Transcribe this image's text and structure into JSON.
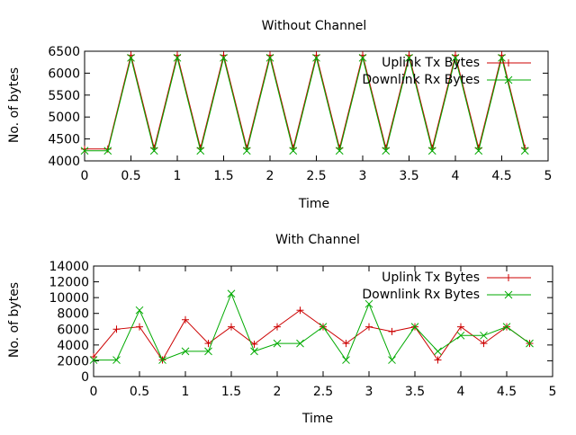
{
  "chart_data": [
    {
      "type": "line",
      "title": "Without Channel",
      "xlabel": "Time",
      "ylabel": "No. of bytes",
      "xlim": [
        0,
        5
      ],
      "ylim": [
        4000,
        6500
      ],
      "x_ticks": [
        "0",
        "0.5",
        "1",
        "1.5",
        "2",
        "2.5",
        "3",
        "3.5",
        "4",
        "4.5",
        "5"
      ],
      "y_ticks": [
        "4000",
        "4500",
        "5000",
        "5500",
        "6000",
        "6500"
      ],
      "legend_position": "top-right",
      "series": [
        {
          "name": "Uplink Tx Bytes",
          "color": "#cc0000",
          "marker": "plus",
          "x": [
            0,
            0.25,
            0.5,
            0.75,
            1,
            1.25,
            1.5,
            1.75,
            2,
            2.25,
            2.5,
            2.75,
            3,
            3.25,
            3.5,
            3.75,
            4,
            4.25,
            4.5,
            4.75
          ],
          "y": [
            4270,
            4270,
            6410,
            4290,
            6410,
            4290,
            6410,
            4290,
            6410,
            4290,
            6410,
            4290,
            6410,
            4290,
            6410,
            4290,
            6410,
            4290,
            6410,
            4290
          ]
        },
        {
          "name": "Downlink Rx Bytes",
          "color": "#00aa00",
          "marker": "x",
          "x": [
            0,
            0.25,
            0.5,
            0.75,
            1,
            1.25,
            1.5,
            1.75,
            2,
            2.25,
            2.5,
            2.75,
            3,
            3.25,
            3.5,
            3.75,
            4,
            4.25,
            4.5,
            4.75
          ],
          "y": [
            4230,
            4230,
            6350,
            4230,
            6350,
            4230,
            6350,
            4230,
            6350,
            4230,
            6350,
            4230,
            6350,
            4230,
            6350,
            4230,
            6350,
            4230,
            6350,
            4230
          ]
        }
      ]
    },
    {
      "type": "line",
      "title": "With Channel",
      "xlabel": "Time",
      "ylabel": "No. of bytes",
      "xlim": [
        0,
        5
      ],
      "ylim": [
        0,
        14000
      ],
      "x_ticks": [
        "0",
        "0.5",
        "1",
        "1.5",
        "2",
        "2.5",
        "3",
        "3.5",
        "4",
        "4.5",
        "5"
      ],
      "y_ticks": [
        "0",
        "2000",
        "4000",
        "6000",
        "8000",
        "10000",
        "12000",
        "14000"
      ],
      "legend_position": "top-right",
      "series": [
        {
          "name": "Uplink Tx Bytes",
          "color": "#cc0000",
          "marker": "plus",
          "x": [
            0,
            0.25,
            0.5,
            0.75,
            1,
            1.25,
            1.5,
            1.75,
            2,
            2.25,
            2.5,
            2.75,
            3,
            3.25,
            3.5,
            3.75,
            4,
            4.25,
            4.5,
            4.75
          ],
          "y": [
            2500,
            6000,
            6300,
            2100,
            7200,
            4200,
            6300,
            4100,
            6300,
            8400,
            6300,
            4200,
            6300,
            5700,
            6300,
            2100,
            6300,
            4200,
            6300,
            4200
          ]
        },
        {
          "name": "Downlink Rx Bytes",
          "color": "#00aa00",
          "marker": "x",
          "x": [
            0,
            0.25,
            0.5,
            0.75,
            1,
            1.25,
            1.5,
            1.75,
            2,
            2.25,
            2.5,
            2.75,
            3,
            3.25,
            3.5,
            3.75,
            4,
            4.25,
            4.5,
            4.75
          ],
          "y": [
            2100,
            2100,
            8400,
            2100,
            3200,
            3200,
            10500,
            3200,
            4200,
            4200,
            6300,
            2100,
            9200,
            2100,
            6300,
            3200,
            5200,
            5200,
            6300,
            4200
          ]
        }
      ]
    }
  ]
}
